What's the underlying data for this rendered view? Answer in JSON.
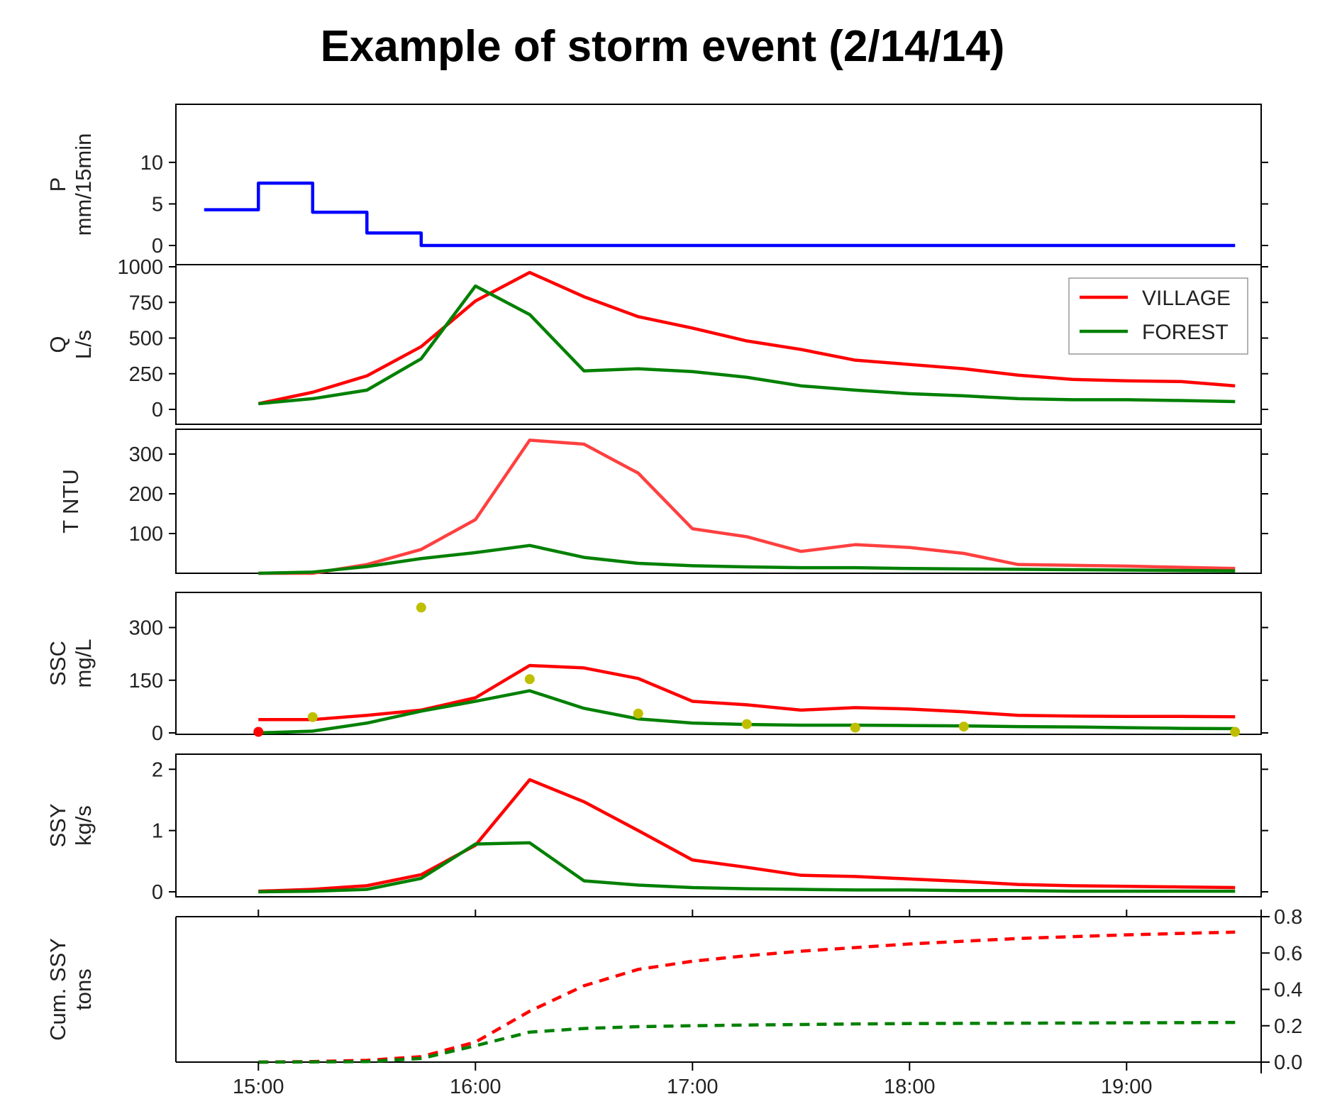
{
  "title": "Example of storm event (2/14/14)",
  "x_tick_labels": [
    "15:00",
    "16:00",
    "17:00",
    "18:00",
    "19:00"
  ],
  "chart_data": [
    {
      "type": "line",
      "ylabel": [
        "P",
        "mm/15min"
      ],
      "ylim": [
        0,
        14
      ],
      "yticks": [
        0,
        5,
        10
      ],
      "step": true,
      "series": [
        {
          "color": "#0000ff",
          "x": [
            14.75,
            15.0,
            15.25,
            15.5,
            15.75,
            16.0,
            19.5
          ],
          "y": [
            4.3,
            7.5,
            4.0,
            1.5,
            0,
            0,
            0
          ]
        }
      ]
    },
    {
      "type": "line",
      "ylabel": [
        "Q",
        "L/s"
      ],
      "ylim": [
        0,
        1000
      ],
      "yticks": [
        0,
        250,
        500,
        750,
        1000
      ],
      "legend": {
        "position": "top-right",
        "entries": [
          {
            "label": "VILLAGE",
            "color": "#ff0000"
          },
          {
            "label": "FOREST",
            "color": "#008000"
          }
        ]
      },
      "series": [
        {
          "name": "VILLAGE",
          "color": "#ff0000",
          "x": [
            15.0,
            15.25,
            15.5,
            15.75,
            16.0,
            16.25,
            16.5,
            16.75,
            17.0,
            17.25,
            17.5,
            17.75,
            18.0,
            18.25,
            18.5,
            18.75,
            19.0,
            19.25,
            19.5
          ],
          "y": [
            40,
            120,
            235,
            440,
            760,
            960,
            790,
            650,
            570,
            480,
            420,
            345,
            315,
            285,
            240,
            210,
            200,
            195,
            165
          ]
        },
        {
          "name": "FOREST",
          "color": "#008000",
          "x": [
            15.0,
            15.25,
            15.5,
            15.75,
            16.0,
            16.25,
            16.5,
            16.75,
            17.0,
            17.25,
            17.5,
            17.75,
            18.0,
            18.25,
            18.5,
            18.75,
            19.0,
            19.25,
            19.5
          ],
          "y": [
            40,
            75,
            135,
            355,
            865,
            665,
            270,
            285,
            265,
            225,
            165,
            135,
            110,
            95,
            75,
            68,
            68,
            62,
            55
          ]
        }
      ]
    },
    {
      "type": "line",
      "ylabel": [
        "T NTU"
      ],
      "ylim": [
        0,
        350
      ],
      "yticks": [
        100,
        200,
        300
      ],
      "series": [
        {
          "name": "VILLAGE",
          "color": "#ff4040",
          "x": [
            15.0,
            15.25,
            15.5,
            15.75,
            16.0,
            16.25,
            16.5,
            16.75,
            17.0,
            17.25,
            17.5,
            17.75,
            18.0,
            18.25,
            18.5,
            18.75,
            19.0,
            19.25,
            19.5
          ],
          "y": [
            0,
            0,
            22,
            60,
            135,
            335,
            325,
            252,
            112,
            92,
            55,
            72,
            65,
            50,
            22,
            20,
            18,
            15,
            12
          ]
        },
        {
          "name": "FOREST",
          "color": "#008000",
          "x": [
            15.0,
            15.25,
            15.5,
            15.75,
            16.0,
            16.25,
            16.5,
            16.75,
            17.0,
            17.25,
            17.5,
            17.75,
            18.0,
            18.25,
            18.5,
            18.75,
            19.0,
            19.25,
            19.5
          ],
          "y": [
            0,
            3,
            17,
            37,
            52,
            70,
            40,
            25,
            19,
            16,
            14,
            14,
            12,
            11,
            10,
            9,
            8,
            7,
            6
          ]
        }
      ]
    },
    {
      "type": "line",
      "ylabel": [
        "SSC",
        "mg/L"
      ],
      "ylim": [
        0,
        400
      ],
      "yticks": [
        0,
        150,
        300
      ],
      "series": [
        {
          "name": "VILLAGE",
          "color": "#ff0000",
          "x": [
            15.0,
            15.25,
            15.5,
            15.75,
            16.0,
            16.25,
            16.5,
            16.75,
            17.0,
            17.25,
            17.5,
            17.75,
            18.0,
            18.25,
            18.5,
            18.75,
            19.0,
            19.25,
            19.5
          ],
          "y": [
            38,
            38,
            50,
            65,
            100,
            192,
            185,
            155,
            90,
            80,
            65,
            72,
            68,
            60,
            50,
            48,
            47,
            47,
            46
          ]
        },
        {
          "name": "FOREST",
          "color": "#008000",
          "x": [
            15.0,
            15.25,
            15.5,
            15.75,
            16.0,
            16.25,
            16.5,
            16.75,
            17.0,
            17.25,
            17.5,
            17.75,
            18.0,
            18.25,
            18.5,
            18.75,
            19.0,
            19.25,
            19.5
          ],
          "y": [
            0,
            5,
            28,
            62,
            90,
            120,
            70,
            40,
            28,
            24,
            22,
            22,
            21,
            20,
            18,
            17,
            15,
            13,
            12
          ]
        }
      ],
      "points": [
        {
          "color": "#bfbf00",
          "x": [
            15.25,
            15.75,
            16.25,
            16.75,
            17.25,
            17.75,
            18.25,
            19.5
          ],
          "y": [
            45,
            357,
            153,
            55,
            25,
            15,
            18,
            3
          ]
        },
        {
          "color": "#ff0000",
          "x": [
            15.0
          ],
          "y": [
            3
          ]
        }
      ]
    },
    {
      "type": "line",
      "ylabel": [
        "SSY",
        "kg/s"
      ],
      "ylim": [
        0,
        2.2
      ],
      "yticks": [
        0,
        1,
        2
      ],
      "series": [
        {
          "name": "VILLAGE",
          "color": "#ff0000",
          "x": [
            15.0,
            15.25,
            15.5,
            15.75,
            16.0,
            16.25,
            16.5,
            16.75,
            17.0,
            17.25,
            17.5,
            17.75,
            18.0,
            18.25,
            18.5,
            18.75,
            19.0,
            19.25,
            19.5
          ],
          "y": [
            0.01,
            0.04,
            0.1,
            0.28,
            0.76,
            1.83,
            1.47,
            1.0,
            0.52,
            0.4,
            0.27,
            0.25,
            0.21,
            0.17,
            0.12,
            0.1,
            0.09,
            0.08,
            0.07
          ]
        },
        {
          "name": "FOREST",
          "color": "#008000",
          "x": [
            15.0,
            15.25,
            15.5,
            15.75,
            16.0,
            16.25,
            16.5,
            16.75,
            17.0,
            17.25,
            17.5,
            17.75,
            18.0,
            18.25,
            18.5,
            18.75,
            19.0,
            19.25,
            19.5
          ],
          "y": [
            0.0,
            0.01,
            0.04,
            0.22,
            0.78,
            0.8,
            0.18,
            0.11,
            0.07,
            0.05,
            0.04,
            0.03,
            0.03,
            0.02,
            0.02,
            0.01,
            0.01,
            0.01,
            0.01
          ]
        }
      ]
    },
    {
      "type": "line",
      "ylabel": [
        "Cum. SSY",
        "tons"
      ],
      "ylim": [
        0,
        0.8
      ],
      "yticks": [
        0.0,
        0.2,
        0.4,
        0.6,
        0.8
      ],
      "y_axis_side": "right",
      "dashed": true,
      "series": [
        {
          "name": "VILLAGE",
          "color": "#ff0000",
          "x": [
            15.0,
            15.25,
            15.5,
            15.75,
            16.0,
            16.25,
            16.5,
            16.75,
            17.0,
            17.25,
            17.5,
            17.75,
            18.0,
            18.25,
            18.5,
            18.75,
            19.0,
            19.25,
            19.5
          ],
          "y": [
            0.0,
            0.003,
            0.01,
            0.03,
            0.11,
            0.28,
            0.42,
            0.51,
            0.555,
            0.585,
            0.61,
            0.63,
            0.65,
            0.665,
            0.68,
            0.69,
            0.7,
            0.708,
            0.715
          ]
        },
        {
          "name": "FOREST",
          "color": "#008000",
          "x": [
            15.0,
            15.25,
            15.5,
            15.75,
            16.0,
            16.25,
            16.5,
            16.75,
            17.0,
            17.25,
            17.5,
            17.75,
            18.0,
            18.25,
            18.5,
            18.75,
            19.0,
            19.25,
            19.5
          ],
          "y": [
            0.0,
            0.001,
            0.003,
            0.02,
            0.09,
            0.165,
            0.185,
            0.195,
            0.2,
            0.204,
            0.207,
            0.21,
            0.212,
            0.213,
            0.214,
            0.215,
            0.216,
            0.217,
            0.218
          ]
        }
      ]
    }
  ]
}
